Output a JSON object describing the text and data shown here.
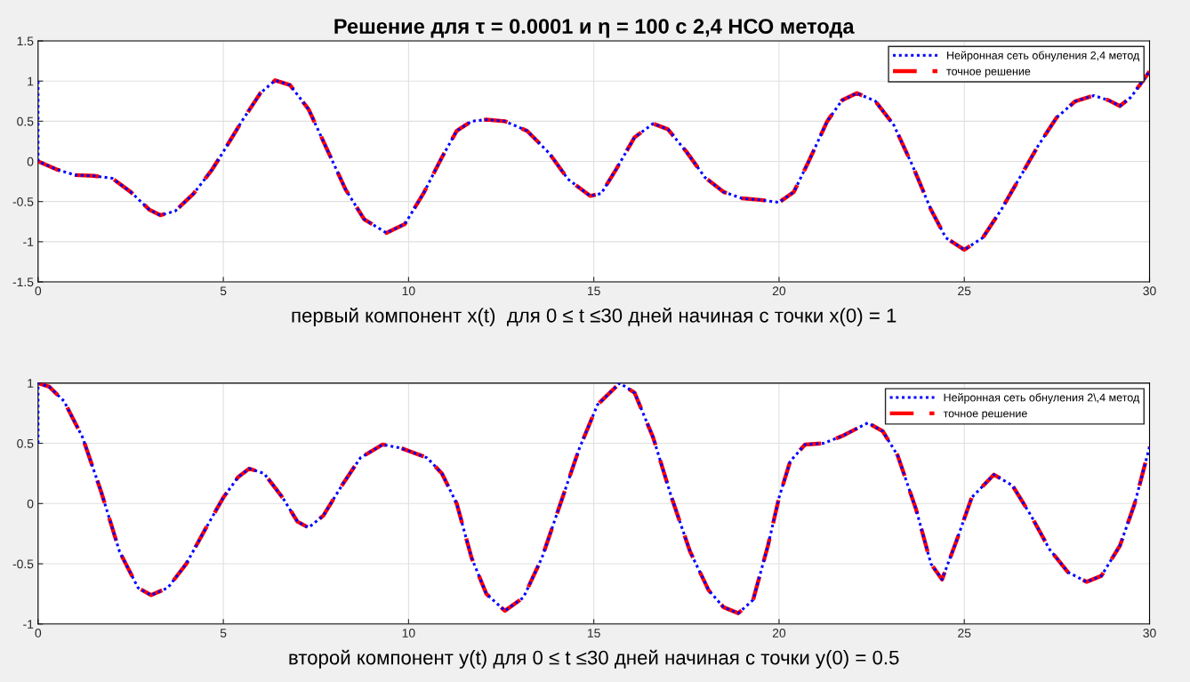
{
  "chart_data": [
    {
      "type": "line",
      "title": "Решение для τ = 0.0001 и η = 100 с 2,4 НСО метода",
      "xlabel": "первый компонент x(t)  для 0 ≤ t ≤30 дней начиная с точки x(0) = 1",
      "xlim": [
        0,
        30
      ],
      "xticks": [
        0,
        5,
        10,
        15,
        20,
        25,
        30
      ],
      "ylim": [
        -1.5,
        1.5
      ],
      "yticks": [
        -1.5,
        -1,
        -0.5,
        0,
        0.5,
        1,
        1.5
      ],
      "grid": true,
      "legend": "top right",
      "series": [
        {
          "name": "Нейронная сеть обнуления 2,4 метод",
          "color": "#0000ff",
          "line_style": "dotted",
          "x": [
            0,
            0,
            0.5,
            1,
            1.5,
            2,
            2.5,
            3,
            3.3,
            3.7,
            4.2,
            4.7,
            5,
            5.5,
            6,
            6.4,
            6.8,
            7.3,
            7.8,
            8.3,
            8.8,
            9.4,
            9.9,
            10.4,
            10.9,
            11.3,
            11.7,
            12.1,
            12.6,
            13.2,
            13.8,
            14.3,
            14.9,
            15.2,
            15.6,
            16.1,
            16.6,
            17,
            17.5,
            18,
            18.5,
            19,
            19.5,
            20,
            20.4,
            20.8,
            21.3,
            21.7,
            22.1,
            22.6,
            23.1,
            23.6,
            24.1,
            24.5,
            25,
            25.5,
            26,
            26.5,
            27,
            27.5,
            28,
            28.5,
            28.9,
            29.2,
            29.5,
            30
          ],
          "values": [
            1,
            0,
            -0.1,
            -0.17,
            -0.18,
            -0.21,
            -0.38,
            -0.6,
            -0.67,
            -0.62,
            -0.4,
            -0.1,
            0.12,
            0.5,
            0.85,
            1.01,
            0.95,
            0.65,
            0.15,
            -0.35,
            -0.72,
            -0.89,
            -0.78,
            -0.4,
            0.05,
            0.38,
            0.5,
            0.52,
            0.5,
            0.38,
            0.1,
            -0.22,
            -0.43,
            -0.4,
            -0.1,
            0.3,
            0.47,
            0.4,
            0.12,
            -0.2,
            -0.38,
            -0.46,
            -0.48,
            -0.51,
            -0.38,
            0,
            0.5,
            0.76,
            0.85,
            0.75,
            0.45,
            -0.05,
            -0.6,
            -0.95,
            -1.1,
            -0.95,
            -0.6,
            -0.2,
            0.2,
            0.55,
            0.75,
            0.82,
            0.76,
            0.69,
            0.8,
            1.12
          ]
        },
        {
          "name": "точное решение",
          "color": "#ff0000",
          "line_style": "dashed",
          "x": [
            0,
            0.5,
            1,
            1.5,
            2,
            2.5,
            3,
            3.3,
            3.7,
            4.2,
            4.7,
            5,
            5.5,
            6,
            6.4,
            6.8,
            7.3,
            7.8,
            8.3,
            8.8,
            9.4,
            9.9,
            10.4,
            10.9,
            11.3,
            11.7,
            12.1,
            12.6,
            13.2,
            13.8,
            14.3,
            14.9,
            15.2,
            15.6,
            16.1,
            16.6,
            17,
            17.5,
            18,
            18.5,
            19,
            19.5,
            20,
            20.4,
            20.8,
            21.3,
            21.7,
            22.1,
            22.6,
            23.1,
            23.6,
            24.1,
            24.5,
            25,
            25.5,
            26,
            26.5,
            27,
            27.5,
            28,
            28.5,
            28.9,
            29.2,
            29.5,
            30
          ],
          "values": [
            0,
            -0.1,
            -0.17,
            -0.18,
            -0.21,
            -0.38,
            -0.6,
            -0.67,
            -0.62,
            -0.4,
            -0.1,
            0.12,
            0.5,
            0.85,
            1.01,
            0.95,
            0.65,
            0.15,
            -0.35,
            -0.72,
            -0.89,
            -0.78,
            -0.4,
            0.05,
            0.38,
            0.5,
            0.52,
            0.5,
            0.38,
            0.1,
            -0.22,
            -0.43,
            -0.4,
            -0.1,
            0.3,
            0.47,
            0.4,
            0.12,
            -0.2,
            -0.38,
            -0.46,
            -0.48,
            -0.51,
            -0.38,
            0,
            0.5,
            0.76,
            0.85,
            0.75,
            0.45,
            -0.05,
            -0.6,
            -0.95,
            -1.1,
            -0.95,
            -0.6,
            -0.2,
            0.2,
            0.55,
            0.75,
            0.82,
            0.76,
            0.69,
            0.8,
            1.12
          ]
        }
      ]
    },
    {
      "type": "line",
      "xlabel": "второй компонент y(t) для 0 ≤ t ≤30 дней начиная с точки y(0) = 0.5",
      "xlim": [
        0,
        30
      ],
      "xticks": [
        0,
        5,
        10,
        15,
        20,
        25,
        30
      ],
      "ylim": [
        -1,
        1
      ],
      "yticks": [
        -1,
        -0.5,
        0,
        0.5,
        1
      ],
      "grid": true,
      "legend": "top right",
      "series": [
        {
          "name": "Нейронная сеть обнуления 2\\,4 метод",
          "color": "#0000ff",
          "line_style": "dotted",
          "x": [
            0,
            0,
            0.3,
            0.7,
            1.2,
            1.7,
            2.2,
            2.7,
            3.05,
            3.5,
            4,
            4.5,
            5,
            5.4,
            5.7,
            6.1,
            6.6,
            7,
            7.3,
            7.7,
            8.2,
            8.7,
            9.3,
            9.8,
            10.5,
            10.9,
            11.3,
            11.7,
            12.1,
            12.6,
            13.1,
            13.6,
            14.1,
            14.6,
            15.1,
            15.7,
            16.1,
            16.6,
            17.1,
            17.6,
            18.1,
            18.5,
            18.9,
            19.3,
            19.7,
            20,
            20.3,
            20.7,
            21.2,
            21.7,
            22.4,
            22.8,
            23.2,
            23.7,
            24.1,
            24.4,
            24.8,
            25.2,
            25.8,
            26.3,
            26.8,
            27.3,
            27.8,
            28.3,
            28.7,
            29.2,
            29.6,
            30
          ],
          "values": [
            0.5,
            1,
            0.97,
            0.85,
            0.55,
            0.1,
            -0.4,
            -0.7,
            -0.76,
            -0.7,
            -0.5,
            -0.22,
            0.05,
            0.22,
            0.29,
            0.25,
            0.05,
            -0.15,
            -0.2,
            -0.1,
            0.15,
            0.38,
            0.49,
            0.46,
            0.38,
            0.25,
            0,
            -0.45,
            -0.75,
            -0.89,
            -0.78,
            -0.45,
            0,
            0.45,
            0.82,
            1,
            0.92,
            0.55,
            0.05,
            -0.4,
            -0.72,
            -0.86,
            -0.91,
            -0.8,
            -0.35,
            0.05,
            0.35,
            0.49,
            0.5,
            0.56,
            0.67,
            0.6,
            0.4,
            -0.05,
            -0.5,
            -0.63,
            -0.3,
            0.05,
            0.24,
            0.15,
            -0.1,
            -0.38,
            -0.57,
            -0.65,
            -0.6,
            -0.35,
            0,
            0.47
          ]
        },
        {
          "name": "точное решение",
          "color": "#ff0000",
          "line_style": "dashed",
          "x": [
            0,
            0.3,
            0.7,
            1.2,
            1.7,
            2.2,
            2.7,
            3.05,
            3.5,
            4,
            4.5,
            5,
            5.4,
            5.7,
            6.1,
            6.6,
            7,
            7.3,
            7.7,
            8.2,
            8.7,
            9.3,
            9.8,
            10.5,
            10.9,
            11.3,
            11.7,
            12.1,
            12.6,
            13.1,
            13.6,
            14.1,
            14.6,
            15.1,
            15.7,
            16.1,
            16.6,
            17.1,
            17.6,
            18.1,
            18.5,
            18.9,
            19.3,
            19.7,
            20,
            20.3,
            20.7,
            21.2,
            21.7,
            22.4,
            22.8,
            23.2,
            23.7,
            24.1,
            24.4,
            24.8,
            25.2,
            25.8,
            26.3,
            26.8,
            27.3,
            27.8,
            28.3,
            28.7,
            29.2,
            29.6,
            30
          ],
          "values": [
            1,
            0.97,
            0.85,
            0.55,
            0.1,
            -0.4,
            -0.7,
            -0.76,
            -0.7,
            -0.5,
            -0.22,
            0.05,
            0.22,
            0.29,
            0.25,
            0.05,
            -0.15,
            -0.2,
            -0.1,
            0.15,
            0.38,
            0.49,
            0.46,
            0.38,
            0.25,
            0,
            -0.45,
            -0.75,
            -0.89,
            -0.78,
            -0.45,
            0,
            0.45,
            0.82,
            1,
            0.92,
            0.55,
            0.05,
            -0.4,
            -0.72,
            -0.86,
            -0.91,
            -0.8,
            -0.35,
            0.05,
            0.35,
            0.49,
            0.5,
            0.56,
            0.67,
            0.6,
            0.4,
            -0.05,
            -0.5,
            -0.63,
            -0.3,
            0.05,
            0.24,
            0.15,
            -0.1,
            -0.38,
            -0.57,
            -0.65,
            -0.6,
            -0.35,
            0,
            0.47
          ]
        }
      ]
    }
  ]
}
